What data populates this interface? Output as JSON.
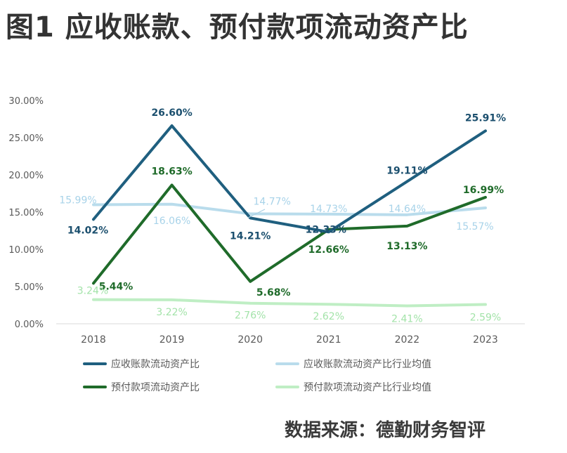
{
  "title": "图1 应收账款、预付款项流动资产比",
  "source": "数据来源：德勤财务智评",
  "chart_data": {
    "type": "line",
    "categories": [
      "2018",
      "2019",
      "2020",
      "2021",
      "2022",
      "2023"
    ],
    "ylim": [
      0,
      30
    ],
    "yticks": [
      "0.00%",
      "5.00%",
      "10.00%",
      "15.00%",
      "20.00%",
      "25.00%",
      "30.00%"
    ],
    "grid": false,
    "legend_position": "bottom",
    "series": [
      {
        "name": "应收账款流动资产比",
        "values": [
          14.02,
          26.6,
          14.21,
          12.33,
          19.11,
          25.91
        ],
        "labels": [
          "14.02%",
          "26.60%",
          "14.21%",
          "12.33%",
          "19.11%",
          "25.91%"
        ],
        "color": "#1f5f7f"
      },
      {
        "name": "应收账款流动资产比行业均值",
        "values": [
          15.99,
          16.06,
          14.77,
          14.73,
          14.64,
          15.57
        ],
        "labels": [
          "15.99%",
          "16.06%",
          "14.77%",
          "14.73%",
          "14.64%",
          "15.57%"
        ],
        "color": "#b9dcec"
      },
      {
        "name": "预付款项流动资产比",
        "values": [
          5.44,
          18.63,
          5.68,
          12.66,
          13.13,
          16.99
        ],
        "labels": [
          "5.44%",
          "18.63%",
          "5.68%",
          "12.66%",
          "13.13%",
          "16.99%"
        ],
        "color": "#1f6b2a"
      },
      {
        "name": "预付款项流动资产比行业均值",
        "values": [
          3.24,
          3.22,
          2.76,
          2.62,
          2.41,
          2.59
        ],
        "labels": [
          "3.24%",
          "3.22%",
          "2.76%",
          "2.62%",
          "2.41%",
          "2.59%"
        ],
        "color": "#bfeec4"
      }
    ]
  }
}
